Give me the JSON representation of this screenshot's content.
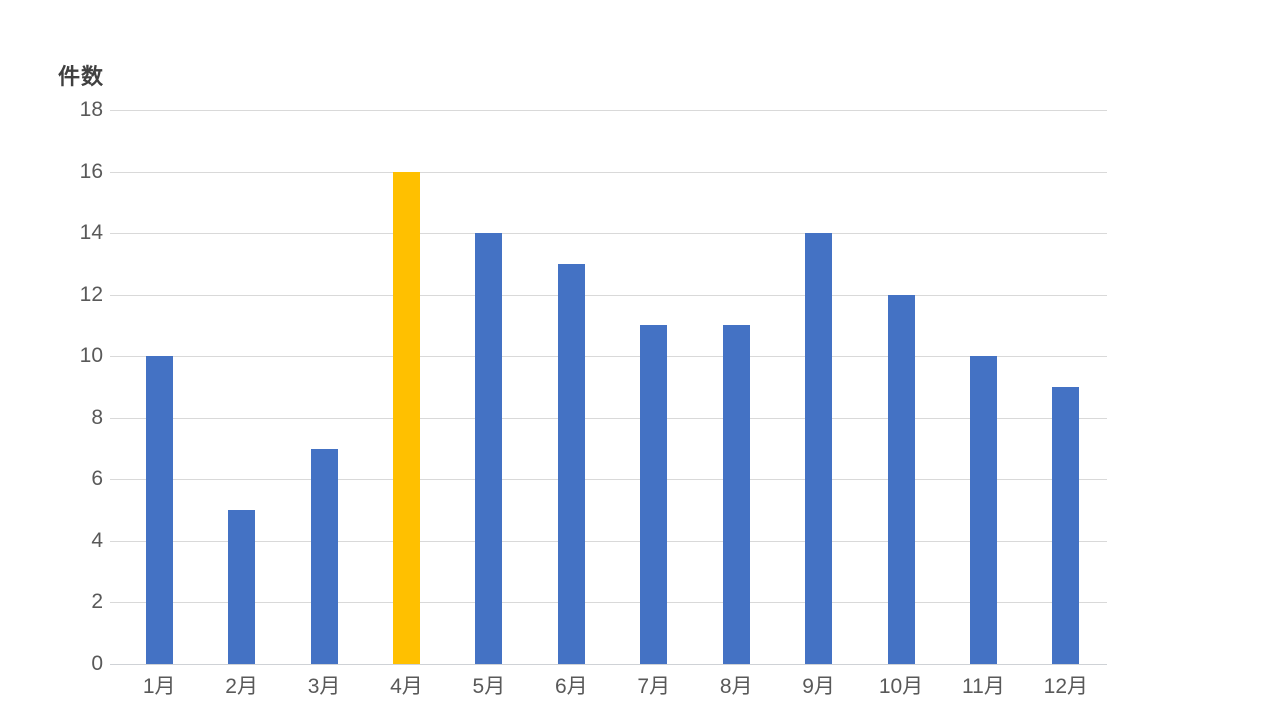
{
  "page": {
    "background": "#FFFFFF"
  },
  "chart_data": {
    "type": "bar",
    "title": "",
    "ylabel": "件数",
    "xlabel": "",
    "categories": [
      "1月",
      "2月",
      "3月",
      "4月",
      "5月",
      "6月",
      "7月",
      "8月",
      "9月",
      "10月",
      "11月",
      "12月"
    ],
    "values": [
      10,
      5,
      7,
      16,
      14,
      13,
      11,
      11,
      14,
      12,
      10,
      9
    ],
    "highlight_index": 3,
    "ylim": [
      0,
      18
    ],
    "ytick_step": 2,
    "yticks": [
      0,
      2,
      4,
      6,
      8,
      10,
      12,
      14,
      16,
      18
    ],
    "grid": "horizontal",
    "legend": "none",
    "colors": {
      "bar": "#4472C4",
      "highlight": "#FFC000",
      "gridline": "#D9D9D9",
      "axis_line": "#CFD2D6",
      "tick_text": "#595959",
      "axis_title_text": "#404040"
    }
  }
}
